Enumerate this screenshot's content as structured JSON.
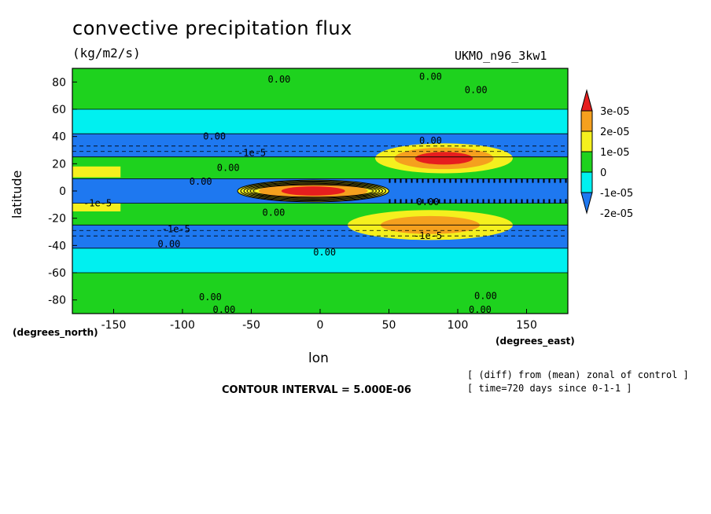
{
  "title": "convective precipitation flux",
  "units": "(kg/m2/s)",
  "run_name": "UKMO_n96_3kw1",
  "xlabel": "lon",
  "ylabel": "latitude",
  "xunit": "(degrees_east)",
  "yunit": "(degrees_north)",
  "contour_interval": "CONTOUR INTERVAL = 5.000E-06",
  "note_lines": [
    "[ (diff) from (mean) zonal of control ]",
    "[ time=720 days since 0-1-1 ]"
  ],
  "chart_data": {
    "type": "heatmap",
    "title": "convective precipitation flux",
    "xlabel": "lon",
    "ylabel": "latitude",
    "xlim": [
      -180,
      180
    ],
    "ylim": [
      -90,
      90
    ],
    "x_ticks": [
      -150,
      -100,
      -50,
      0,
      50,
      100,
      150
    ],
    "x_tick_labels": [
      "-150",
      "-100",
      "-50",
      "0",
      "50",
      "100",
      "150"
    ],
    "y_ticks": [
      -80,
      -60,
      -40,
      -20,
      0,
      20,
      40,
      60,
      80
    ],
    "y_tick_labels": [
      "-80",
      "-60",
      "-40",
      "-20",
      "0",
      "20",
      "40",
      "60",
      "80"
    ],
    "colorbar": {
      "levels": [
        -2.5e-05,
        -2e-05,
        -1e-05,
        0,
        1e-05,
        2e-05,
        3e-05
      ],
      "labels": [
        "3e-05",
        "2e-05",
        "1e-05",
        "0",
        "-1e-05",
        "-2e-05"
      ],
      "colors": [
        "#e61e1e",
        "#f5a01e",
        "#f5f01e",
        "#1ed21e",
        "#00f0f0",
        "#1e78f0"
      ]
    },
    "bands": [
      {
        "lat": [
          60,
          90
        ],
        "level": 0,
        "color": "#1ed21e"
      },
      {
        "lat": [
          42,
          60
        ],
        "level": -1,
        "color": "#00f0f0"
      },
      {
        "lat": [
          25,
          42
        ],
        "level": -2,
        "color": "#1e78f0"
      },
      {
        "lat": [
          9,
          25
        ],
        "level": 0,
        "color": "#1ed21e"
      },
      {
        "lat": [
          -9,
          9
        ],
        "level": -2,
        "color": "#1e78f0"
      },
      {
        "lat": [
          -25,
          -9
        ],
        "level": 0,
        "color": "#1ed21e"
      },
      {
        "lat": [
          -42,
          -25
        ],
        "level": -2,
        "color": "#1e78f0"
      },
      {
        "lat": [
          -60,
          -42
        ],
        "level": -1,
        "color": "#00f0f0"
      },
      {
        "lat": [
          -90,
          -60
        ],
        "level": 0,
        "color": "#1ed21e"
      }
    ],
    "features": [
      {
        "name": "equatorial-maximum",
        "lon": [
          -60,
          50
        ],
        "lat": [
          -8,
          8
        ],
        "peak": 3e-05,
        "color": "#e61e1e"
      },
      {
        "name": "north-subtropical-maximum",
        "lon": [
          40,
          140
        ],
        "lat": [
          13,
          35
        ],
        "peak": 3e-05,
        "color": "#e61e1e"
      },
      {
        "name": "south-subtropical-maximum",
        "lon": [
          20,
          140
        ],
        "lat": [
          -36,
          -14
        ],
        "peak": 2e-05,
        "color": "#f5a01e"
      }
    ],
    "contour_labels": [
      {
        "text": "0.00",
        "lon": -38,
        "lat": 82
      },
      {
        "text": "0.00",
        "lon": 72,
        "lat": 84
      },
      {
        "text": "0.00",
        "lon": 105,
        "lat": 74
      },
      {
        "text": "0.00",
        "lon": -85,
        "lat": 40
      },
      {
        "text": "-1e-5",
        "lon": -60,
        "lat": 28
      },
      {
        "text": "0.00",
        "lon": 72,
        "lat": 37
      },
      {
        "text": "0.00",
        "lon": -75,
        "lat": 17
      },
      {
        "text": "0.00",
        "lon": -95,
        "lat": 7
      },
      {
        "text": "0.00",
        "lon": 70,
        "lat": -8
      },
      {
        "text": "-1e-5",
        "lon": -172,
        "lat": -9
      },
      {
        "text": "0.00",
        "lon": -42,
        "lat": -16
      },
      {
        "text": "-1e-5",
        "lon": -115,
        "lat": -28
      },
      {
        "text": "0.00",
        "lon": -118,
        "lat": -39
      },
      {
        "text": "-1e-5",
        "lon": 68,
        "lat": -33
      },
      {
        "text": "0.00",
        "lon": -5,
        "lat": -45
      },
      {
        "text": "0.00",
        "lon": -88,
        "lat": -78
      },
      {
        "text": "0.00",
        "lon": -78,
        "lat": -87
      },
      {
        "text": "0.00",
        "lon": 112,
        "lat": -77
      },
      {
        "text": "0.00",
        "lon": 108,
        "lat": -87
      }
    ]
  }
}
